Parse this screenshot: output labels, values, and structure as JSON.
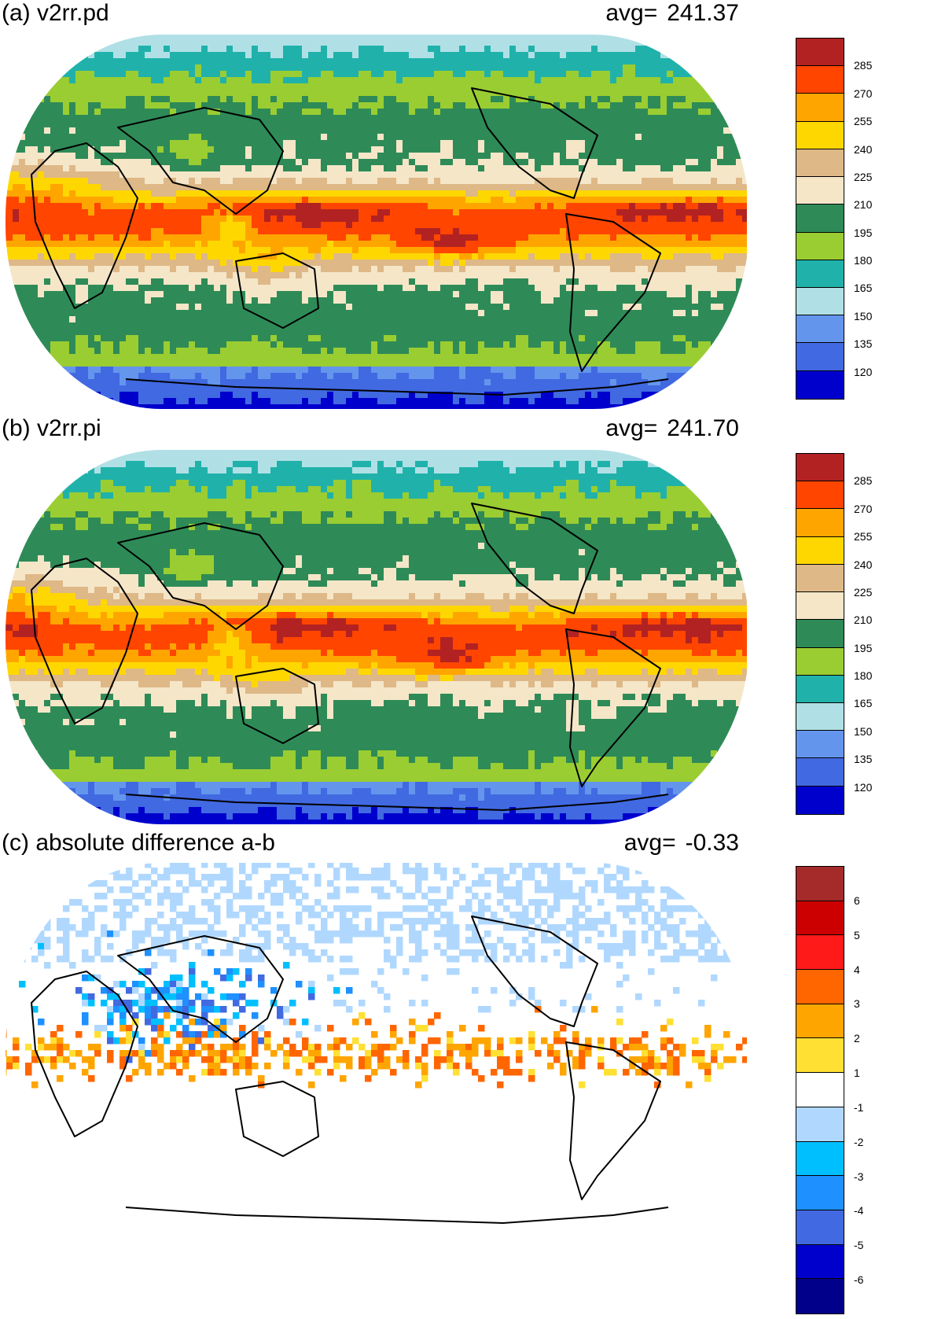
{
  "panels": [
    {
      "title": "(a) v2rr.pd",
      "avg_label": "avg=",
      "avg_value": "241.37",
      "palette": "abs",
      "variant": 0
    },
    {
      "title": "(b) v2rr.pi",
      "avg_label": "avg=",
      "avg_value": "241.70",
      "palette": "abs",
      "variant": 1
    },
    {
      "title": "(c) absolute difference a-b",
      "avg_label": "avg=",
      "avg_value": "-0.33",
      "palette": "diff",
      "variant": 2
    }
  ],
  "colorbars": {
    "abs": {
      "labels": [
        "285",
        "270",
        "255",
        "240",
        "225",
        "210",
        "195",
        "180",
        "165",
        "150",
        "135",
        "120"
      ],
      "colors": [
        "#b22222",
        "#ff4500",
        "#ffa500",
        "#ffd700",
        "#deb887",
        "#f5e6c8",
        "#2e8b57",
        "#9acd32",
        "#20b2aa",
        "#b0e0e6",
        "#6495ed",
        "#4169e1",
        "#0000cd"
      ]
    },
    "diff": {
      "labels": [
        "6",
        "5",
        "4",
        "3",
        "2",
        "1",
        "-1",
        "-2",
        "-3",
        "-4",
        "-5",
        "-6"
      ],
      "colors": [
        "#a52a2a",
        "#cc0000",
        "#ff1a1a",
        "#ff6600",
        "#ffa500",
        "#ffe033",
        "#ffffff",
        "#b0d8ff",
        "#00bfff",
        "#1e90ff",
        "#4169e1",
        "#0000cd",
        "#00008b"
      ]
    }
  }
}
